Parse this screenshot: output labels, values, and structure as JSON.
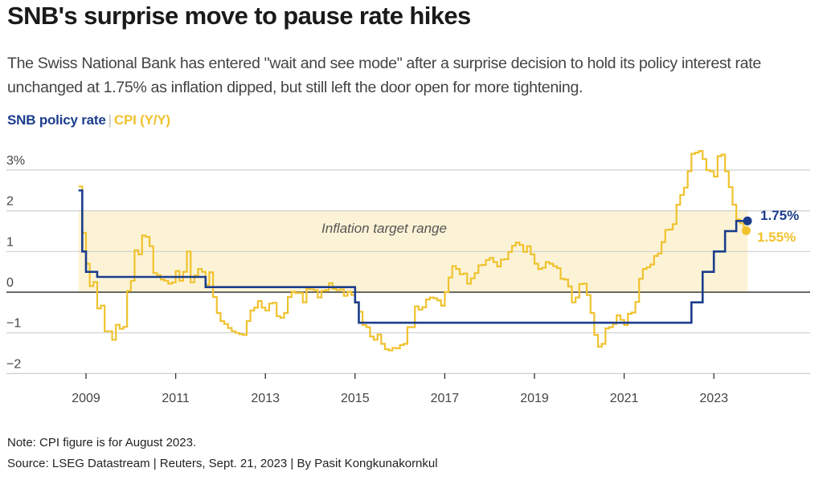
{
  "header": {
    "title": "SNB's surprise move to pause rate hikes",
    "subtitle": "The Swiss National Bank has entered \"wait and see mode\" after a surprise decision to hold its policy interest rate unchanged at 1.75% as inflation dipped, but still left the door open for more tightening."
  },
  "legend": {
    "items": [
      {
        "label": "SNB policy rate",
        "color": "#1b3d8c"
      },
      {
        "label": "CPI (Y/Y)",
        "color": "#f0c22e"
      }
    ],
    "separator": "|"
  },
  "footer": {
    "note": "Note: CPI figure is for August 2023.",
    "source": "Source: LSEG Datastream | Reuters, Sept. 21, 2023 | By Pasit Kongkunakornkul"
  },
  "chart_data": {
    "type": "line",
    "title": "SNB's surprise move to pause rate hikes",
    "xlabel": "",
    "ylabel": "",
    "ylim": [
      -2.3,
      3.3
    ],
    "xlim": [
      2007.9,
      2024.8
    ],
    "grid": true,
    "y_ticks": [
      {
        "value": 3,
        "label": "3%"
      },
      {
        "value": 2,
        "label": "2"
      },
      {
        "value": 1,
        "label": "1"
      },
      {
        "value": 0,
        "label": "0"
      },
      {
        "value": -1,
        "label": "−1"
      },
      {
        "value": -2,
        "label": "−2"
      }
    ],
    "x_ticks": [
      "2009",
      "2011",
      "2013",
      "2015",
      "2017",
      "2019",
      "2021",
      "2023"
    ],
    "band": {
      "label": "Inflation target range",
      "from": 0,
      "to": 2,
      "color": "#fcf3d6"
    },
    "series": [
      {
        "name": "SNB policy rate",
        "color": "#1b3d8c",
        "style": "step",
        "end_label": "1.75%",
        "points": [
          [
            "2008-10",
            2.5
          ],
          [
            "2008-11",
            1.0
          ],
          [
            "2008-12",
            0.5
          ],
          [
            "2009-03",
            0.375
          ],
          [
            "2011-08",
            0.125
          ],
          [
            "2014-12",
            -0.25
          ],
          [
            "2015-01",
            -0.75
          ],
          [
            "2022-06",
            -0.25
          ],
          [
            "2022-09",
            0.5
          ],
          [
            "2022-12",
            1.0
          ],
          [
            "2023-03",
            1.5
          ],
          [
            "2023-06",
            1.75
          ],
          [
            "2023-09",
            1.75
          ]
        ]
      },
      {
        "name": "CPI (Y/Y)",
        "color": "#f0c22e",
        "style": "step",
        "end_label": "1.55%",
        "points": [
          [
            "2008-10",
            2.6
          ],
          [
            "2008-11",
            1.46
          ],
          [
            "2008-12",
            0.7
          ],
          [
            "2009-01",
            0.15
          ],
          [
            "2009-02",
            0.25
          ],
          [
            "2009-03",
            -0.4
          ],
          [
            "2009-04",
            -0.33
          ],
          [
            "2009-05",
            -0.96
          ],
          [
            "2009-06",
            -0.96
          ],
          [
            "2009-07",
            -1.17
          ],
          [
            "2009-08",
            -0.8
          ],
          [
            "2009-09",
            -0.9
          ],
          [
            "2009-10",
            -0.85
          ],
          [
            "2009-11",
            0.03
          ],
          [
            "2009-12",
            0.28
          ],
          [
            "2010-01",
            1.03
          ],
          [
            "2010-02",
            0.93
          ],
          [
            "2010-03",
            1.39
          ],
          [
            "2010-04",
            1.36
          ],
          [
            "2010-05",
            1.13
          ],
          [
            "2010-06",
            0.47
          ],
          [
            "2010-07",
            0.42
          ],
          [
            "2010-08",
            0.31
          ],
          [
            "2010-09",
            0.28
          ],
          [
            "2010-10",
            0.21
          ],
          [
            "2010-11",
            0.24
          ],
          [
            "2010-12",
            0.52
          ],
          [
            "2011-01",
            0.28
          ],
          [
            "2011-02",
            0.5
          ],
          [
            "2011-03",
            1.0
          ],
          [
            "2011-04",
            0.24
          ],
          [
            "2011-05",
            0.41
          ],
          [
            "2011-06",
            0.57
          ],
          [
            "2011-07",
            0.5
          ],
          [
            "2011-08",
            0.18
          ],
          [
            "2011-09",
            0.49
          ],
          [
            "2011-10",
            -0.12
          ],
          [
            "2011-11",
            -0.51
          ],
          [
            "2011-12",
            -0.71
          ],
          [
            "2012-01",
            -0.78
          ],
          [
            "2012-02",
            -0.88
          ],
          [
            "2012-03",
            -0.96
          ],
          [
            "2012-04",
            -1.0
          ],
          [
            "2012-05",
            -1.03
          ],
          [
            "2012-06",
            -1.05
          ],
          [
            "2012-07",
            -0.71
          ],
          [
            "2012-08",
            -0.45
          ],
          [
            "2012-09",
            -0.38
          ],
          [
            "2012-10",
            -0.22
          ],
          [
            "2012-11",
            -0.38
          ],
          [
            "2012-12",
            -0.45
          ],
          [
            "2013-01",
            -0.28
          ],
          [
            "2013-02",
            -0.26
          ],
          [
            "2013-03",
            -0.59
          ],
          [
            "2013-04",
            -0.63
          ],
          [
            "2013-05",
            -0.51
          ],
          [
            "2013-06",
            -0.12
          ],
          [
            "2013-07",
            0.01
          ],
          [
            "2013-08",
            -0.02
          ],
          [
            "2013-09",
            -0.02
          ],
          [
            "2013-10",
            -0.25
          ],
          [
            "2013-11",
            0.08
          ],
          [
            "2013-12",
            0.07
          ],
          [
            "2014-01",
            0.05
          ],
          [
            "2014-02",
            -0.13
          ],
          [
            "2014-03",
            0.03
          ],
          [
            "2014-04",
            0.05
          ],
          [
            "2014-05",
            0.22
          ],
          [
            "2014-06",
            0.08
          ],
          [
            "2014-07",
            0.05
          ],
          [
            "2014-08",
            0.07
          ],
          [
            "2014-09",
            -0.09
          ],
          [
            "2014-10",
            0.01
          ],
          [
            "2014-11",
            -0.07
          ],
          [
            "2014-12",
            -0.26
          ],
          [
            "2015-01",
            -0.48
          ],
          [
            "2015-02",
            -0.81
          ],
          [
            "2015-03",
            -0.86
          ],
          [
            "2015-04",
            -1.09
          ],
          [
            "2015-05",
            -1.17
          ],
          [
            "2015-06",
            -1.04
          ],
          [
            "2015-07",
            -1.27
          ],
          [
            "2015-08",
            -1.4
          ],
          [
            "2015-09",
            -1.43
          ],
          [
            "2015-10",
            -1.37
          ],
          [
            "2015-11",
            -1.38
          ],
          [
            "2015-12",
            -1.3
          ],
          [
            "2016-01",
            -1.27
          ],
          [
            "2016-02",
            -0.86
          ],
          [
            "2016-03",
            -0.86
          ],
          [
            "2016-04",
            -0.35
          ],
          [
            "2016-05",
            -0.43
          ],
          [
            "2016-06",
            -0.37
          ],
          [
            "2016-07",
            -0.18
          ],
          [
            "2016-08",
            -0.13
          ],
          [
            "2016-09",
            -0.15
          ],
          [
            "2016-10",
            -0.2
          ],
          [
            "2016-11",
            -0.33
          ],
          [
            "2016-12",
            0.0
          ],
          [
            "2017-01",
            0.36
          ],
          [
            "2017-02",
            0.64
          ],
          [
            "2017-03",
            0.57
          ],
          [
            "2017-04",
            0.44
          ],
          [
            "2017-05",
            0.46
          ],
          [
            "2017-06",
            0.21
          ],
          [
            "2017-07",
            0.34
          ],
          [
            "2017-08",
            0.47
          ],
          [
            "2017-09",
            0.66
          ],
          [
            "2017-10",
            0.67
          ],
          [
            "2017-11",
            0.79
          ],
          [
            "2017-12",
            0.84
          ],
          [
            "2018-01",
            0.74
          ],
          [
            "2018-02",
            0.63
          ],
          [
            "2018-03",
            0.8
          ],
          [
            "2018-04",
            0.81
          ],
          [
            "2018-05",
            0.99
          ],
          [
            "2018-06",
            1.14
          ],
          [
            "2018-07",
            1.22
          ],
          [
            "2018-08",
            1.16
          ],
          [
            "2018-09",
            0.99
          ],
          [
            "2018-10",
            1.13
          ],
          [
            "2018-11",
            0.93
          ],
          [
            "2018-12",
            0.7
          ],
          [
            "2019-01",
            0.57
          ],
          [
            "2019-02",
            0.6
          ],
          [
            "2019-03",
            0.74
          ],
          [
            "2019-04",
            0.7
          ],
          [
            "2019-05",
            0.64
          ],
          [
            "2019-06",
            0.59
          ],
          [
            "2019-07",
            0.33
          ],
          [
            "2019-08",
            0.31
          ],
          [
            "2019-09",
            0.14
          ],
          [
            "2019-10",
            -0.25
          ],
          [
            "2019-11",
            -0.13
          ],
          [
            "2019-12",
            0.2
          ],
          [
            "2020-01",
            0.21
          ],
          [
            "2020-02",
            -0.07
          ],
          [
            "2020-03",
            -0.51
          ],
          [
            "2020-04",
            -1.05
          ],
          [
            "2020-05",
            -1.34
          ],
          [
            "2020-06",
            -1.27
          ],
          [
            "2020-07",
            -0.89
          ],
          [
            "2020-08",
            -0.86
          ],
          [
            "2020-09",
            -0.78
          ],
          [
            "2020-10",
            -0.57
          ],
          [
            "2020-11",
            -0.68
          ],
          [
            "2020-12",
            -0.81
          ],
          [
            "2021-01",
            -0.53
          ],
          [
            "2021-02",
            -0.5
          ],
          [
            "2021-03",
            -0.24
          ],
          [
            "2021-04",
            0.33
          ],
          [
            "2021-05",
            0.57
          ],
          [
            "2021-06",
            0.61
          ],
          [
            "2021-07",
            0.68
          ],
          [
            "2021-08",
            0.89
          ],
          [
            "2021-09",
            0.95
          ],
          [
            "2021-10",
            1.23
          ],
          [
            "2021-11",
            1.53
          ],
          [
            "2021-12",
            1.54
          ],
          [
            "2022-01",
            1.67
          ],
          [
            "2022-02",
            2.15
          ],
          [
            "2022-03",
            2.39
          ],
          [
            "2022-04",
            2.57
          ],
          [
            "2022-05",
            2.97
          ],
          [
            "2022-06",
            3.4
          ],
          [
            "2022-07",
            3.43
          ],
          [
            "2022-08",
            3.47
          ],
          [
            "2022-09",
            3.27
          ],
          [
            "2022-10",
            3.0
          ],
          [
            "2022-11",
            2.97
          ],
          [
            "2022-12",
            2.84
          ],
          [
            "2023-01",
            3.34
          ],
          [
            "2023-02",
            3.38
          ],
          [
            "2023-03",
            2.97
          ],
          [
            "2023-04",
            2.58
          ],
          [
            "2023-05",
            2.15
          ],
          [
            "2023-06",
            1.79
          ],
          [
            "2023-07",
            1.69
          ],
          [
            "2023-08",
            1.55
          ]
        ]
      }
    ]
  }
}
